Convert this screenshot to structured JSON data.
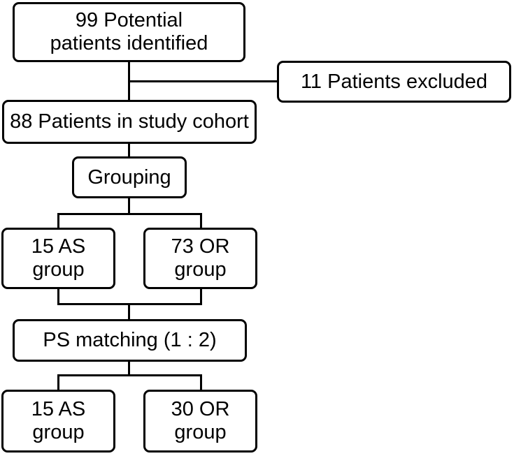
{
  "diagram": {
    "type": "flowchart",
    "colors": {
      "line": "#000000",
      "box_background": "#ffffff",
      "text": "#000000"
    },
    "boxes": {
      "potential": {
        "line1": "99 Potential",
        "line2": "patients identified"
      },
      "excluded": {
        "label": "11 Patients excluded"
      },
      "cohort": {
        "label": "88 Patients in study cohort"
      },
      "grouping": {
        "label": "Grouping"
      },
      "as_initial": {
        "line1": "15 AS",
        "line2": "group"
      },
      "or_initial": {
        "line1": "73 OR",
        "line2": "group"
      },
      "ps_matching": {
        "label": "PS matching (1 : 2)"
      },
      "as_matched": {
        "line1": "15 AS",
        "line2": "group"
      },
      "or_matched": {
        "line1": "30 OR",
        "line2": "group"
      }
    }
  }
}
